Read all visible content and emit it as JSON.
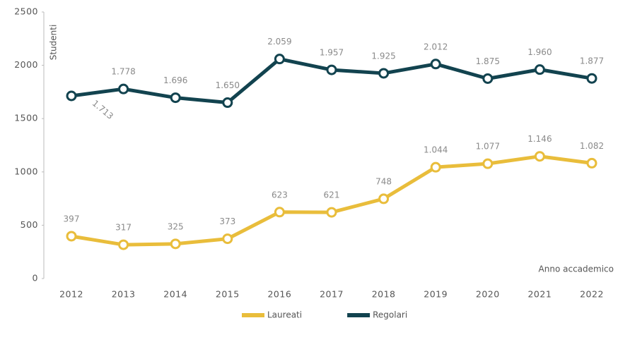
{
  "chart_data": {
    "type": "line",
    "y_label": "Studenti",
    "x_label": "Anno accademico",
    "categories": [
      "2012",
      "2013",
      "2014",
      "2015",
      "2016",
      "2017",
      "2018",
      "2019",
      "2020",
      "2021",
      "2022"
    ],
    "series": [
      {
        "name": "Laureati",
        "color": "#e9bd3b",
        "values": [
          397,
          317,
          325,
          373,
          623,
          621,
          748,
          1044,
          1077,
          1146,
          1082
        ],
        "value_labels": [
          "397",
          "317",
          "325",
          "373",
          "623",
          "621",
          "748",
          "1.044",
          "1.077",
          "1.146",
          "1.082"
        ]
      },
      {
        "name": "Regolari",
        "color": "#12434f",
        "values": [
          1713,
          1778,
          1696,
          1650,
          2059,
          1957,
          1925,
          2012,
          1875,
          1960,
          1877
        ],
        "value_labels": [
          "1.713",
          "1.778",
          "1.696",
          "1.650",
          "2.059",
          "1.957",
          "1.925",
          "2.012",
          "1.875",
          "1.960",
          "1.877"
        ]
      }
    ],
    "ylim": [
      0,
      2500
    ],
    "yticks": [
      0,
      500,
      1000,
      1500,
      2000,
      2500
    ],
    "grid": false,
    "legend": "bottom"
  }
}
